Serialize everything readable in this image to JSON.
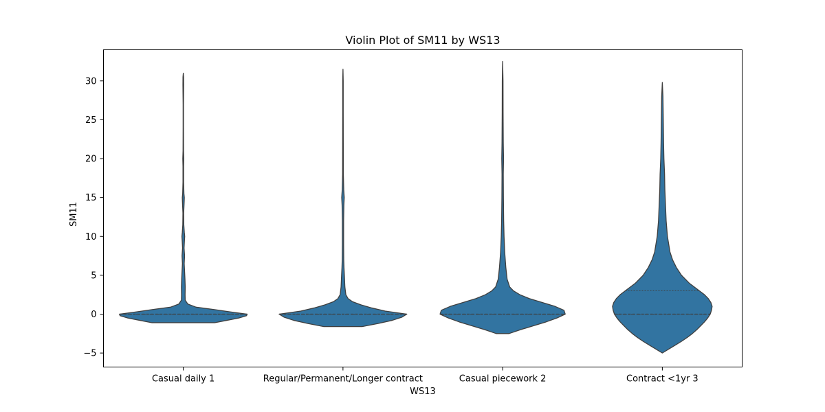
{
  "chart_data": {
    "type": "violin",
    "title": "Violin Plot of SM11 by WS13",
    "xlabel": "WS13",
    "ylabel": "SM11",
    "categories": [
      "Casual daily 1",
      "Regular/Permanent/Longer contract",
      "Casual piecework 2",
      "Contract <1yr 3"
    ],
    "ylim": [
      -6.8,
      34
    ],
    "yticks": [
      -5,
      0,
      5,
      10,
      15,
      20,
      25,
      30
    ],
    "grid": false,
    "fill_color": "#3274a1",
    "edge_color": "#3f3f3f",
    "violins": [
      {
        "category": "Casual daily 1",
        "ymin": -1.1,
        "ymax": 31.0,
        "quartiles": [
          0,
          0,
          0
        ],
        "density": [
          [
            -1.1,
            0.49
          ],
          [
            -0.8,
            0.68
          ],
          [
            -0.5,
            0.87
          ],
          [
            -0.2,
            0.99
          ],
          [
            0,
            1.0
          ],
          [
            0.3,
            0.73
          ],
          [
            0.6,
            0.48
          ],
          [
            0.9,
            0.2
          ],
          [
            1.3,
            0.07
          ],
          [
            1.8,
            0.03
          ],
          [
            2.5,
            0.028
          ],
          [
            3.5,
            0.03
          ],
          [
            4.5,
            0.026
          ],
          [
            5.5,
            0.02
          ],
          [
            6.5,
            0.014
          ],
          [
            7.5,
            0.02
          ],
          [
            8.5,
            0.012
          ],
          [
            9.5,
            0.018
          ],
          [
            10,
            0.022
          ],
          [
            10.5,
            0.016
          ],
          [
            11.5,
            0.008
          ],
          [
            13,
            0.006
          ],
          [
            14.5,
            0.014
          ],
          [
            15,
            0.016
          ],
          [
            15.5,
            0.01
          ],
          [
            17,
            0.005
          ],
          [
            19,
            0.005
          ],
          [
            20,
            0.008
          ],
          [
            21,
            0.004
          ],
          [
            24,
            0.003
          ],
          [
            27,
            0.003
          ],
          [
            29.5,
            0.006
          ],
          [
            30.5,
            0.005
          ],
          [
            31.0,
            0.0
          ]
        ]
      },
      {
        "category": "Regular/Permanent/Longer contract",
        "ymin": -1.6,
        "ymax": 31.5,
        "quartiles": [
          0,
          0,
          0
        ],
        "density": [
          [
            -1.6,
            0.3
          ],
          [
            -1.2,
            0.55
          ],
          [
            -0.8,
            0.77
          ],
          [
            -0.4,
            0.92
          ],
          [
            0,
            1.0
          ],
          [
            0.4,
            0.66
          ],
          [
            0.8,
            0.45
          ],
          [
            1.2,
            0.28
          ],
          [
            1.6,
            0.15
          ],
          [
            2.0,
            0.08
          ],
          [
            2.5,
            0.045
          ],
          [
            3.5,
            0.03
          ],
          [
            5,
            0.022
          ],
          [
            6,
            0.016
          ],
          [
            7,
            0.012
          ],
          [
            9,
            0.01
          ],
          [
            12,
            0.01
          ],
          [
            14,
            0.014
          ],
          [
            15,
            0.02
          ],
          [
            16,
            0.012
          ],
          [
            18,
            0.006
          ],
          [
            22,
            0.005
          ],
          [
            26,
            0.004
          ],
          [
            30,
            0.004
          ],
          [
            31.5,
            0.0
          ]
        ]
      },
      {
        "category": "Casual piecework 2",
        "ymin": -2.5,
        "ymax": 32.5,
        "quartiles": [
          0,
          0,
          0
        ],
        "density": [
          [
            -2.5,
            0.1
          ],
          [
            -2.0,
            0.28
          ],
          [
            -1.5,
            0.48
          ],
          [
            -1.0,
            0.68
          ],
          [
            -0.5,
            0.85
          ],
          [
            0,
            0.98
          ],
          [
            0.5,
            0.96
          ],
          [
            1.0,
            0.82
          ],
          [
            1.5,
            0.62
          ],
          [
            2.0,
            0.42
          ],
          [
            2.5,
            0.27
          ],
          [
            3.0,
            0.17
          ],
          [
            3.5,
            0.11
          ],
          [
            4.5,
            0.07
          ],
          [
            6,
            0.05
          ],
          [
            8,
            0.032
          ],
          [
            10,
            0.022
          ],
          [
            12,
            0.016
          ],
          [
            15,
            0.012
          ],
          [
            18,
            0.01
          ],
          [
            20,
            0.014
          ],
          [
            22,
            0.01
          ],
          [
            26,
            0.007
          ],
          [
            30,
            0.006
          ],
          [
            32.5,
            0.0
          ]
        ]
      },
      {
        "category": "Contract <1yr 3",
        "ymin": -5.0,
        "ymax": 29.8,
        "quartiles": [
          0,
          0,
          3
        ],
        "density": [
          [
            -5.0,
            0.0
          ],
          [
            -4.5,
            0.1
          ],
          [
            -4,
            0.2
          ],
          [
            -3.5,
            0.3
          ],
          [
            -3,
            0.39
          ],
          [
            -2.5,
            0.47
          ],
          [
            -2,
            0.54
          ],
          [
            -1.5,
            0.6
          ],
          [
            -1,
            0.66
          ],
          [
            -0.5,
            0.71
          ],
          [
            0,
            0.75
          ],
          [
            0.5,
            0.77
          ],
          [
            1,
            0.78
          ],
          [
            1.5,
            0.76
          ],
          [
            2,
            0.72
          ],
          [
            2.5,
            0.66
          ],
          [
            3,
            0.58
          ],
          [
            3.5,
            0.5
          ],
          [
            4,
            0.42
          ],
          [
            5,
            0.3
          ],
          [
            6,
            0.22
          ],
          [
            7,
            0.16
          ],
          [
            8,
            0.12
          ],
          [
            10,
            0.08
          ],
          [
            12,
            0.06
          ],
          [
            14,
            0.05
          ],
          [
            16,
            0.04
          ],
          [
            18,
            0.035
          ],
          [
            20,
            0.025
          ],
          [
            22,
            0.02
          ],
          [
            25,
            0.015
          ],
          [
            28,
            0.01
          ],
          [
            29.8,
            0.0
          ]
        ]
      }
    ]
  }
}
